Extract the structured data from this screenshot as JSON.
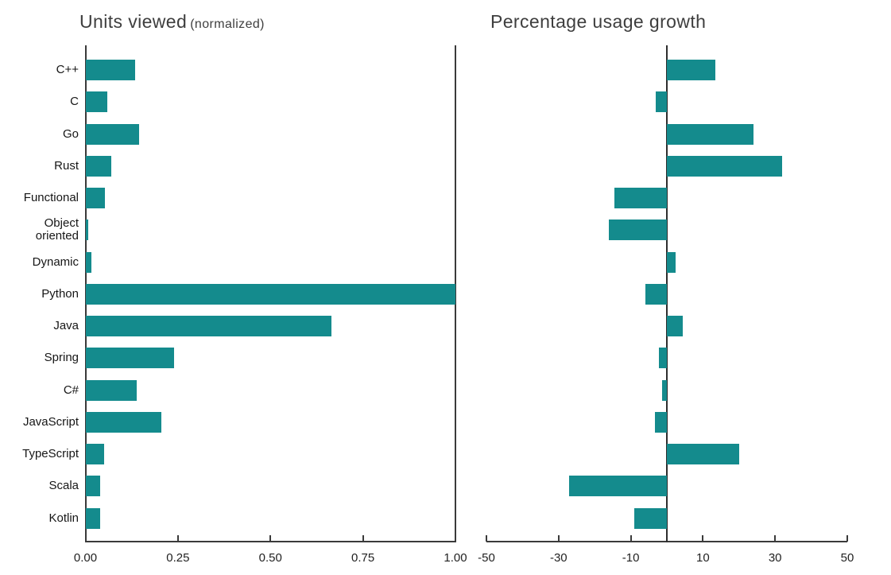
{
  "colors": {
    "bar_teal": "#148b8d",
    "axis": "#3a3a3a",
    "title_text": "#3e3e3e",
    "label_text": "#161616",
    "background": "#ffffff"
  },
  "categories": [
    "C++",
    "C",
    "Go",
    "Rust",
    "Functional",
    "Object oriented",
    "Dynamic",
    "Python",
    "Java",
    "Spring",
    "C#",
    "JavaScript",
    "TypeScript",
    "Scala",
    "Kotlin"
  ],
  "chart_data": [
    {
      "type": "bar",
      "orientation": "horizontal",
      "title": "Units viewed",
      "title_suffix": "(normalized)",
      "categories": [
        "C++",
        "C",
        "Go",
        "Rust",
        "Functional",
        "Object oriented",
        "Dynamic",
        "Python",
        "Java",
        "Spring",
        "C#",
        "JavaScript",
        "TypeScript",
        "Scala",
        "Kotlin"
      ],
      "values": [
        0.135,
        0.06,
        0.145,
        0.07,
        0.053,
        0.008,
        0.017,
        1.0,
        0.665,
        0.24,
        0.138,
        0.205,
        0.05,
        0.04,
        0.04
      ],
      "xlabel": "",
      "ylabel": "",
      "xlim": [
        0,
        1
      ],
      "xticks": [
        0,
        0.25,
        0.5,
        0.75,
        1
      ],
      "xtick_labels": [
        "0.00",
        "0.25",
        "0.50",
        "0.75",
        "1.00"
      ],
      "grid": false,
      "legend": null,
      "spines": {
        "left": true,
        "right": true,
        "bottom": true
      },
      "zero_line": false,
      "show_category_labels": true,
      "bar_color": "#148b8d"
    },
    {
      "type": "bar",
      "orientation": "horizontal",
      "title": "Percentage usage growth",
      "title_suffix": "",
      "categories": [
        "C++",
        "C",
        "Go",
        "Rust",
        "Functional",
        "Object oriented",
        "Dynamic",
        "Python",
        "Java",
        "Spring",
        "C#",
        "JavaScript",
        "TypeScript",
        "Scala",
        "Kotlin"
      ],
      "values": [
        13.5,
        -3,
        24,
        32,
        -14.5,
        -16,
        2.5,
        -6,
        4.5,
        -2.3,
        -1.3,
        -3.2,
        20,
        -27,
        -9
      ],
      "xlabel": "",
      "ylabel": "",
      "xlim": [
        -50,
        50
      ],
      "xticks": [
        -50,
        -30,
        -10,
        10,
        30,
        50
      ],
      "xtick_labels": [
        "-50",
        "-30",
        "-10",
        "10",
        "30",
        "50"
      ],
      "grid": false,
      "legend": null,
      "spines": {
        "left": false,
        "right": false,
        "bottom": true
      },
      "zero_line": true,
      "show_category_labels": false,
      "bar_color": "#148b8d"
    }
  ]
}
